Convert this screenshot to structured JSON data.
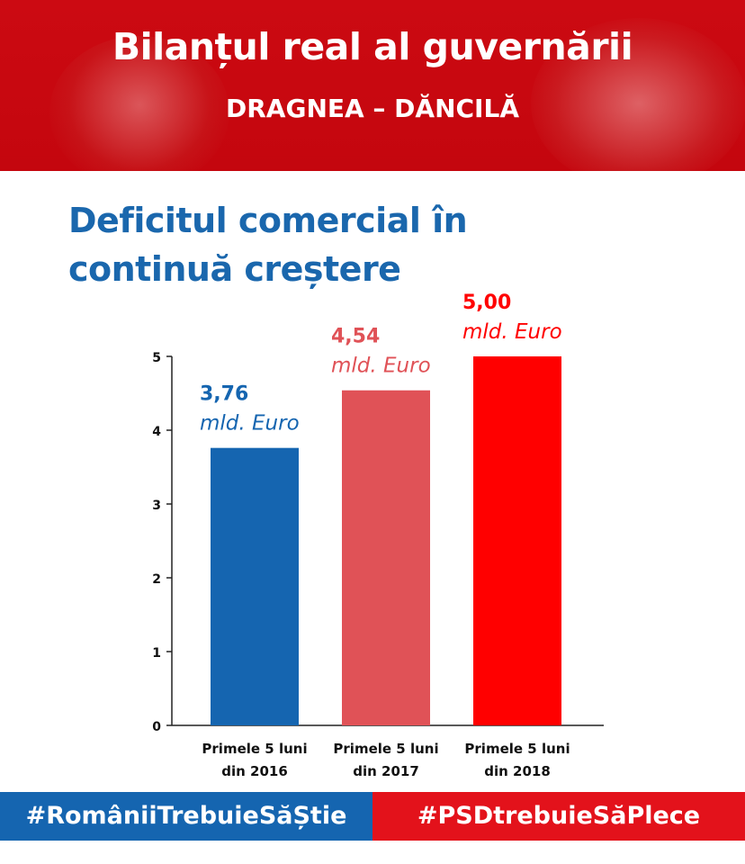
{
  "header": {
    "title": "Bilanțul real al guvernării",
    "subtitle": "DRAGNEA – DĂNCILĂ"
  },
  "headline": {
    "line1": "Deficitul comercial în",
    "line2": "continuă creștere"
  },
  "chart_data": {
    "type": "bar",
    "title": "",
    "xlabel": "",
    "ylabel": "",
    "ylim": [
      0,
      5
    ],
    "yticks": [
      0,
      1,
      2,
      3,
      4,
      5
    ],
    "grid": false,
    "categories": [
      [
        "Primele 5 luni",
        "din 2016"
      ],
      [
        "Primele 5 luni",
        "din 2017"
      ],
      [
        "Primele 5 luni",
        "din 2018"
      ]
    ],
    "values": [
      3.76,
      4.54,
      5.0
    ],
    "data_labels": [
      {
        "value": "3,76",
        "unit": "mld. Euro"
      },
      {
        "value": "4,54",
        "unit": "mld. Euro"
      },
      {
        "value": "5,00",
        "unit": "mld. Euro"
      }
    ],
    "colors": [
      "#1565b0",
      "#e05257",
      "#ff0000"
    ]
  },
  "footer": {
    "left_hashtag": "#RomâniiTrebuieSăȘtie",
    "right_hashtag": "#PSDtrebuieSăPlece",
    "left_color": "#1565b0",
    "right_color": "#e3121b"
  }
}
